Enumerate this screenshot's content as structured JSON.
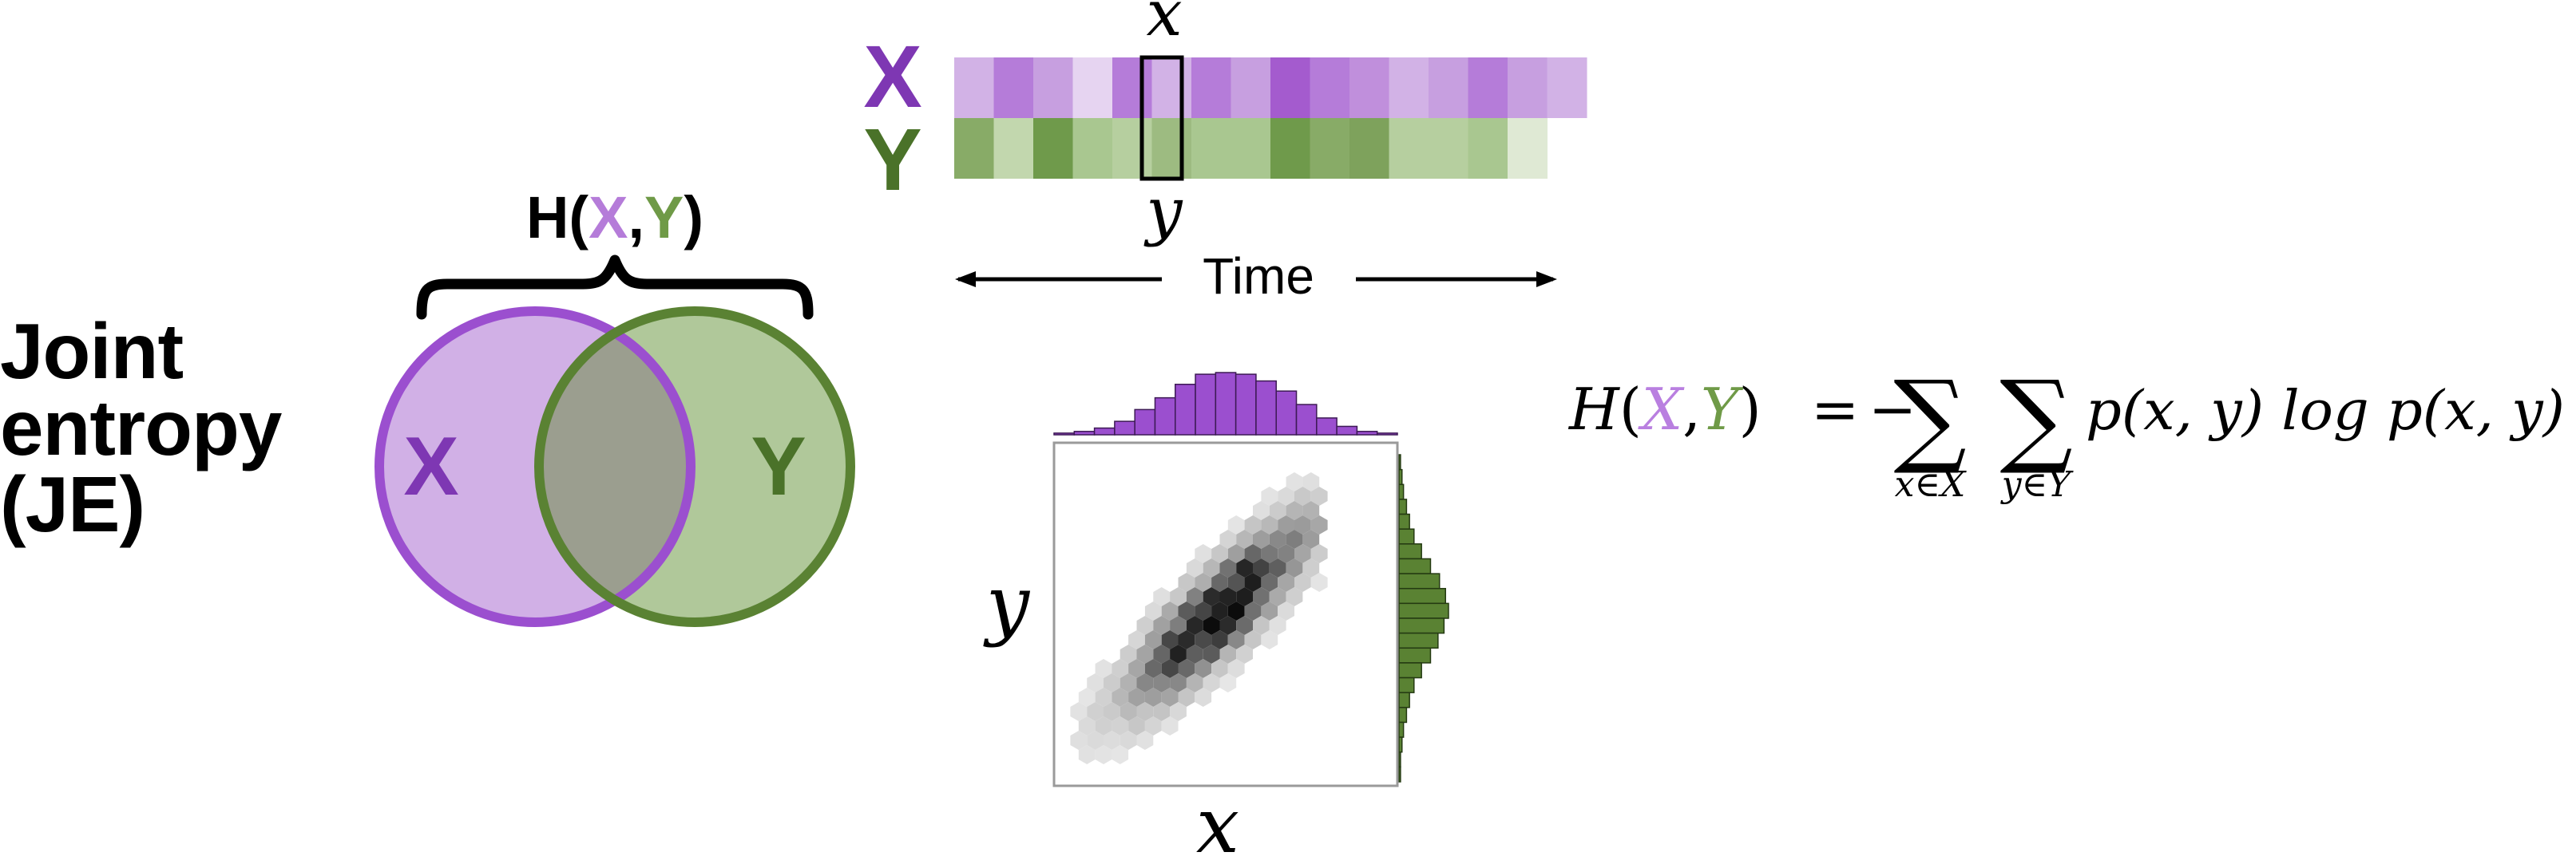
{
  "title": {
    "line1": "Joint",
    "line2": "entropy",
    "line3": "(JE)"
  },
  "venn": {
    "brace_label_prefix": "H(",
    "brace_label_x": "X",
    "brace_label_comma": ",",
    "brace_label_y": "Y",
    "brace_label_suffix": ")",
    "left_label": "X",
    "right_label": "Y"
  },
  "series": {
    "x_label": "X",
    "y_label": "Y",
    "x_sample": "x",
    "y_sample": "y",
    "axis_label": "Time",
    "x_cell_colors": [
      "#d2b2e6",
      "#b57cd9",
      "#c79fe0",
      "#e6d4f1",
      "#b57cd9",
      "#d2b2e6",
      "#b57cd9",
      "#c79fe0",
      "#a45bce",
      "#b57cd9",
      "#c08fdc",
      "#d2b2e6",
      "#c79fe0",
      "#b57cd9",
      "#c79fe0",
      "#d2b2e6"
    ],
    "y_cell_colors": [
      "#88ab67",
      "#c2d7ae",
      "#6f9a4b",
      "#a9c790",
      "#b6cf9f",
      "#9dbb81",
      "#a9c790",
      "#a9c790",
      "#6f9a4b",
      "#88ab67",
      "#7ea25c",
      "#b6cf9f",
      "#b6cf9f",
      "#a9c790",
      "#dfe9d4"
    ]
  },
  "jointplot": {
    "xlabel": "x",
    "ylabel": "y",
    "x_marginal_counts": [
      1,
      2,
      4,
      8,
      15,
      22,
      30,
      36,
      37,
      36,
      32,
      26,
      18,
      10,
      5,
      2,
      1
    ],
    "y_marginal_counts": [
      1,
      2,
      3,
      5,
      7,
      10,
      15,
      21,
      27,
      31,
      33,
      30,
      26,
      21,
      15,
      10,
      7,
      5,
      3,
      2,
      1,
      1
    ]
  },
  "formula": {
    "lhs_H": "H",
    "lhs_open": "(",
    "lhs_X": "X",
    "lhs_comma": ",",
    "lhs_Y": "Y",
    "lhs_close": ")",
    "equals": "=",
    "minus": "−",
    "sigma": "∑",
    "sub1": "x∈X",
    "sub2": "y∈Y",
    "term": "p(x, y) log p(x, y)"
  },
  "colors": {
    "purple": "#9b4fcf",
    "purple_light": "#d1b0e6",
    "purple_dark": "#7e37b3",
    "green": "#5a8233",
    "green_light": "#b0c89a",
    "green_dark": "#4a7229",
    "overlap": "#9b9e8f",
    "formula_purple": "#b97fe0",
    "formula_green": "#6f9a47"
  }
}
